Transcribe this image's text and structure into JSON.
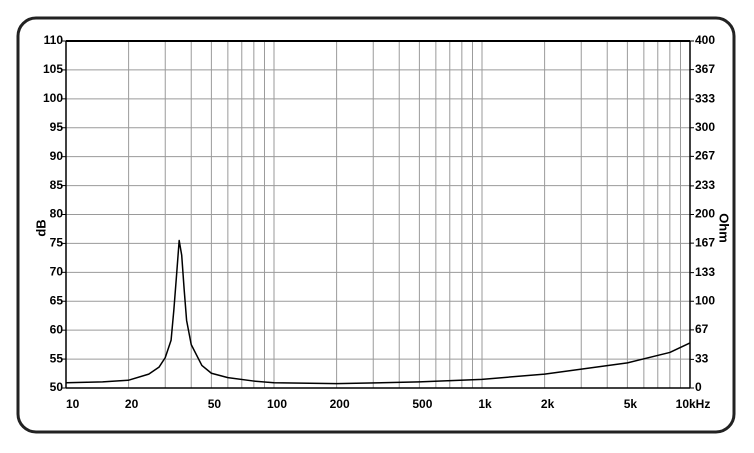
{
  "chart_data": {
    "type": "line",
    "y_label": "dB",
    "y2_label": "Ohm",
    "xscale": "log",
    "xlim": [
      10,
      10000
    ],
    "xticks": [
      10,
      20,
      50,
      100,
      200,
      500,
      {
        "value": 1000,
        "label": "1k"
      },
      {
        "value": 2000,
        "label": "2k"
      },
      {
        "value": 5000,
        "label": "5k"
      },
      {
        "value": 10000,
        "label": "10kHz"
      }
    ],
    "xgrid": [
      10,
      20,
      30,
      40,
      50,
      60,
      70,
      80,
      90,
      100,
      200,
      300,
      400,
      500,
      600,
      700,
      800,
      900,
      1000,
      2000,
      3000,
      4000,
      5000,
      6000,
      7000,
      8000,
      9000,
      10000
    ],
    "ylim": [
      50,
      110
    ],
    "yticks": [
      50,
      55,
      60,
      65,
      70,
      75,
      80,
      85,
      90,
      95,
      100,
      105,
      110
    ],
    "y2lim": [
      0,
      400
    ],
    "y2ticks": [
      0,
      33,
      67,
      100,
      133,
      167,
      200,
      233,
      267,
      300,
      333,
      367,
      400
    ],
    "grid": true,
    "x": [
      10,
      15,
      20,
      25,
      28,
      30,
      32,
      33,
      34,
      35,
      36,
      37,
      38,
      40,
      45,
      50,
      60,
      80,
      100,
      200,
      500,
      1000,
      2000,
      5000,
      8000,
      10000
    ],
    "series": [
      {
        "color": "#000000",
        "axis": "y2",
        "values": [
          6,
          7,
          9,
          16,
          24,
          35,
          55,
          90,
          130,
          170,
          153,
          113,
          78,
          50,
          26,
          17,
          12,
          8,
          6,
          5,
          7,
          10,
          16,
          29,
          41,
          52
        ]
      }
    ]
  }
}
